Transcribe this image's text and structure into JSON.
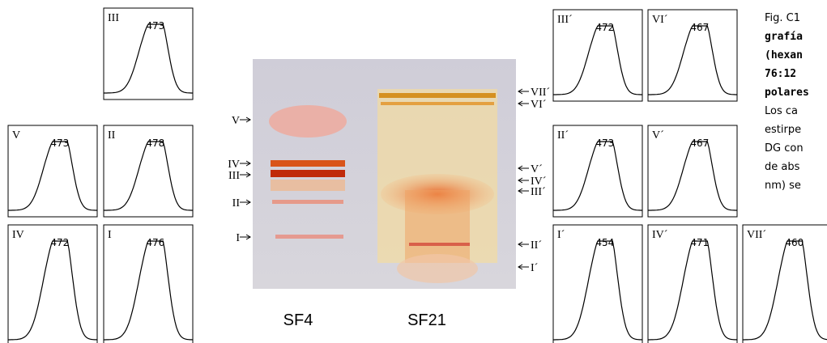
{
  "left_panels": [
    {
      "label": "III",
      "peak": "473"
    },
    {
      "label": "V",
      "peak": "473"
    },
    {
      "label": "II",
      "peak": "478"
    },
    {
      "label": "IV",
      "peak": "472"
    },
    {
      "label": "I",
      "peak": "476"
    }
  ],
  "right_panels": [
    {
      "label": "III´",
      "peak": "472"
    },
    {
      "label": "VI´",
      "peak": "467"
    },
    {
      "label": "II´",
      "peak": "473"
    },
    {
      "label": "V´",
      "peak": "467"
    },
    {
      "label": "I´",
      "peak": "454"
    },
    {
      "label": "IV´",
      "peak": "471"
    },
    {
      "label": "VII´",
      "peak": "460"
    }
  ],
  "plate": {
    "left_bands": [
      "V",
      "IV",
      "III",
      "II",
      "I"
    ],
    "right_bands": [
      "VII´",
      "VI´",
      "V´",
      "IV´",
      "III´",
      "II´",
      "I´"
    ],
    "lanes": [
      "SF4",
      "SF21"
    ]
  },
  "caption": {
    "lines": [
      "Fig. C1",
      "grafía",
      "(hexan",
      "76:12",
      "polares",
      "Los ca",
      "estirpe",
      "DG con",
      "de abs",
      "nm) se"
    ]
  }
}
